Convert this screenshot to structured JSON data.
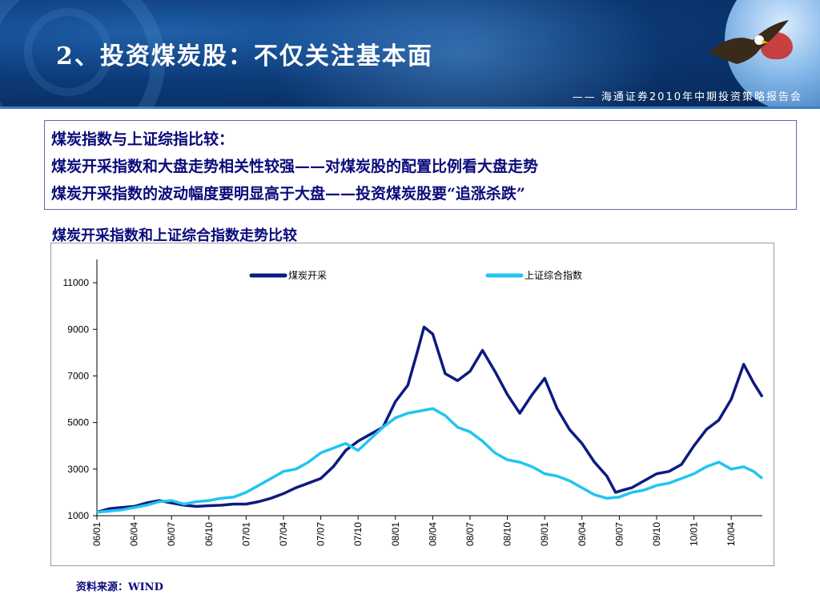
{
  "header": {
    "title": "2、投资煤炭股：不仅关注基本面",
    "subtitle": "—— 海通证券2010年中期投资策略报告会"
  },
  "info": {
    "line1": "煤炭指数与上证综指比较：",
    "line2": "煤炭开采指数和大盘走势相关性较强——对煤炭股的配置比例看大盘走势",
    "line3": "煤炭开采指数的波动幅度要明显高于大盘——投资煤炭股要“追涨杀跌”"
  },
  "source": "资料来源：WIND",
  "colors": {
    "coal": "#0d1b7e",
    "sh": "#22c4ef",
    "text": "#0a0a7a"
  },
  "chart_data": {
    "type": "line",
    "title": "煤炭开采指数和上证综合指数走势比较",
    "ylim": [
      1000,
      12000
    ],
    "yticks": [
      1000,
      3000,
      5000,
      7000,
      9000,
      11000
    ],
    "xticks": [
      "06/01",
      "06/04",
      "06/07",
      "06/10",
      "07/01",
      "07/04",
      "07/07",
      "07/10",
      "08/01",
      "08/04",
      "08/07",
      "08/10",
      "09/01",
      "09/04",
      "09/07",
      "09/10",
      "10/01",
      "10/04"
    ],
    "xlim": [
      0,
      53.5
    ],
    "grid": false,
    "legend_position": "top",
    "series": [
      {
        "name": "煤炭开采",
        "color": "#0d1b7e",
        "points": [
          [
            0,
            1150
          ],
          [
            1,
            1300
          ],
          [
            2,
            1350
          ],
          [
            3,
            1400
          ],
          [
            4,
            1550
          ],
          [
            5,
            1650
          ],
          [
            6,
            1550
          ],
          [
            7,
            1450
          ],
          [
            8,
            1400
          ],
          [
            9,
            1430
          ],
          [
            10,
            1450
          ],
          [
            11,
            1500
          ],
          [
            12,
            1500
          ],
          [
            13,
            1600
          ],
          [
            14,
            1750
          ],
          [
            15,
            1950
          ],
          [
            16,
            2200
          ],
          [
            17,
            2400
          ],
          [
            18,
            2600
          ],
          [
            19,
            3100
          ],
          [
            20,
            3800
          ],
          [
            21,
            4200
          ],
          [
            22,
            4500
          ],
          [
            23,
            4800
          ],
          [
            24,
            5900
          ],
          [
            25,
            6600
          ],
          [
            25.8,
            8100
          ],
          [
            26.3,
            9100
          ],
          [
            27,
            8800
          ],
          [
            28,
            7100
          ],
          [
            29,
            6800
          ],
          [
            30,
            7200
          ],
          [
            31,
            8100
          ],
          [
            32,
            7200
          ],
          [
            33,
            6200
          ],
          [
            34,
            5400
          ],
          [
            35,
            6200
          ],
          [
            36,
            6900
          ],
          [
            37,
            5600
          ],
          [
            38,
            4700
          ],
          [
            39,
            4100
          ],
          [
            40,
            3300
          ],
          [
            41,
            2700
          ],
          [
            41.7,
            2000
          ],
          [
            42.3,
            2100
          ],
          [
            43,
            2200
          ],
          [
            44,
            2500
          ],
          [
            45,
            2800
          ],
          [
            46,
            2900
          ],
          [
            47,
            3200
          ],
          [
            48,
            4000
          ],
          [
            49,
            4700
          ],
          [
            50,
            5100
          ],
          [
            51,
            6000
          ],
          [
            52,
            7500
          ],
          [
            52.8,
            6700
          ],
          [
            53.5,
            6100
          ]
        ]
      },
      {
        "name": "上证综合指数",
        "color": "#22c4ef",
        "points": [
          [
            0,
            1150
          ],
          [
            1,
            1200
          ],
          [
            2,
            1250
          ],
          [
            3,
            1350
          ],
          [
            4,
            1450
          ],
          [
            5,
            1600
          ],
          [
            6,
            1650
          ],
          [
            7,
            1500
          ],
          [
            8,
            1600
          ],
          [
            9,
            1650
          ],
          [
            10,
            1750
          ],
          [
            11,
            1800
          ],
          [
            12,
            2000
          ],
          [
            13,
            2300
          ],
          [
            14,
            2600
          ],
          [
            15,
            2900
          ],
          [
            16,
            3000
          ],
          [
            17,
            3300
          ],
          [
            18,
            3700
          ],
          [
            19,
            3900
          ],
          [
            20,
            4100
          ],
          [
            21,
            3800
          ],
          [
            22,
            4300
          ],
          [
            23,
            4800
          ],
          [
            24,
            5200
          ],
          [
            25,
            5400
          ],
          [
            26,
            5500
          ],
          [
            27,
            5600
          ],
          [
            28,
            5300
          ],
          [
            29,
            4800
          ],
          [
            30,
            4600
          ],
          [
            31,
            4200
          ],
          [
            32,
            3700
          ],
          [
            33,
            3400
          ],
          [
            34,
            3300
          ],
          [
            35,
            3100
          ],
          [
            36,
            2800
          ],
          [
            37,
            2700
          ],
          [
            38,
            2500
          ],
          [
            39,
            2200
          ],
          [
            40,
            1900
          ],
          [
            41,
            1750
          ],
          [
            42,
            1800
          ],
          [
            43,
            2000
          ],
          [
            44,
            2100
          ],
          [
            45,
            2300
          ],
          [
            46,
            2400
          ],
          [
            47,
            2600
          ],
          [
            48,
            2800
          ],
          [
            49,
            3100
          ],
          [
            50,
            3300
          ],
          [
            51,
            3000
          ],
          [
            52,
            3100
          ],
          [
            52.8,
            2900
          ],
          [
            53.5,
            2600
          ]
        ]
      }
    ]
  }
}
